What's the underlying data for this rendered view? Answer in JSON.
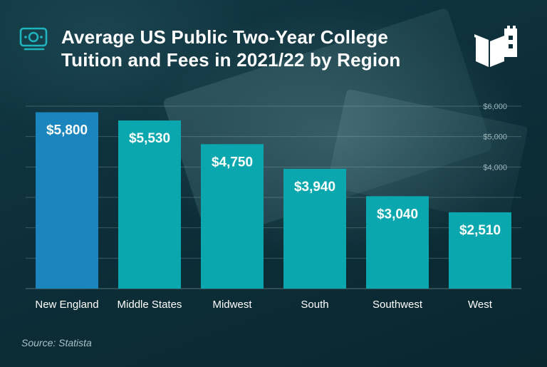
{
  "header": {
    "title_line1": "Average US Public Two-Year College",
    "title_line2": "Tuition and Fees in 2021/22 by Region"
  },
  "icons": {
    "left": "money-icon",
    "right": "book-building-logo"
  },
  "colors": {
    "background": "#0b2a33",
    "highlight_bar": "#1b86bd",
    "bar": "#0aa7ae",
    "text": "#ffffff",
    "tick_text": "#9db7bd"
  },
  "footer": {
    "source": "Source: Statista"
  },
  "chart_data": {
    "type": "bar",
    "title": "Average US Public Two-Year College Tuition and Fees in 2021/22 by Region",
    "categories": [
      "New England",
      "Middle States",
      "Midwest",
      "South",
      "Southwest",
      "West"
    ],
    "values": [
      5800,
      5530,
      4750,
      3940,
      3040,
      2510
    ],
    "value_labels": [
      "$5,800",
      "$5,530",
      "$4,750",
      "$3,940",
      "$3,040",
      "$2,510"
    ],
    "highlighted_index": 0,
    "ylim": [
      0,
      6000
    ],
    "y_ticks": [
      {
        "value": 4000,
        "label": "$4,000"
      },
      {
        "value": 5000,
        "label": "$5,000"
      },
      {
        "value": 6000,
        "label": "$6,000"
      }
    ],
    "gridlines": [
      1000,
      2000,
      3000,
      4000,
      5000,
      6000
    ],
    "grid": true,
    "legend": "none"
  }
}
